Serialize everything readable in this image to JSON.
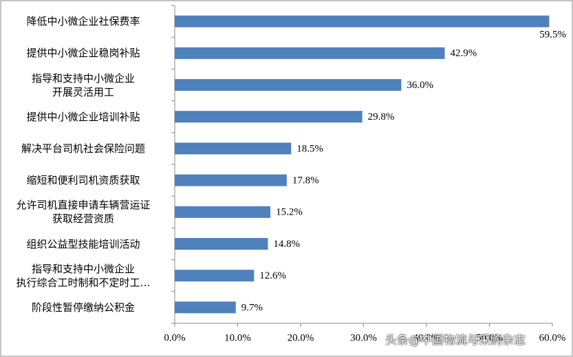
{
  "chart_data": {
    "type": "bar",
    "orientation": "horizontal",
    "categories": [
      "降低中小微企业社保费率",
      "提供中小微企业稳岗补贴",
      "指导和支持中小微企业\n开展灵活用工",
      "提供中小微企业培训补贴",
      "解决平台司机社会保险问题",
      "缩短和便利司机资质获取",
      "允许司机直接申请车辆营运证\n获取经营资质",
      "组织公益型技能培训活动",
      "指导和支持中小微企业\n执行综合工时制和不定时工…",
      "阶段性暂停缴纳公积金"
    ],
    "values": [
      59.5,
      42.9,
      36.0,
      29.8,
      18.5,
      17.8,
      15.2,
      14.8,
      12.6,
      9.7
    ],
    "value_labels": [
      "59.5%",
      "42.9%",
      "36.0%",
      "29.8%",
      "18.5%",
      "17.8%",
      "15.2%",
      "14.8%",
      "12.6%",
      "9.7%"
    ],
    "color": "#4f81bd",
    "xlim": [
      0,
      60
    ],
    "xticks": [
      {
        "value": 0,
        "label": "0.0%"
      },
      {
        "value": 10,
        "label": "10.0%"
      },
      {
        "value": 20,
        "label": "20.0%"
      },
      {
        "value": 30,
        "label": "30.0%"
      },
      {
        "value": 40,
        "label": "40.0%"
      },
      {
        "value": 50,
        "label": "50.0%"
      },
      {
        "value": 60,
        "label": "60.0%"
      }
    ],
    "grid": false
  },
  "watermark": "头条@中国物流与采购杂志"
}
